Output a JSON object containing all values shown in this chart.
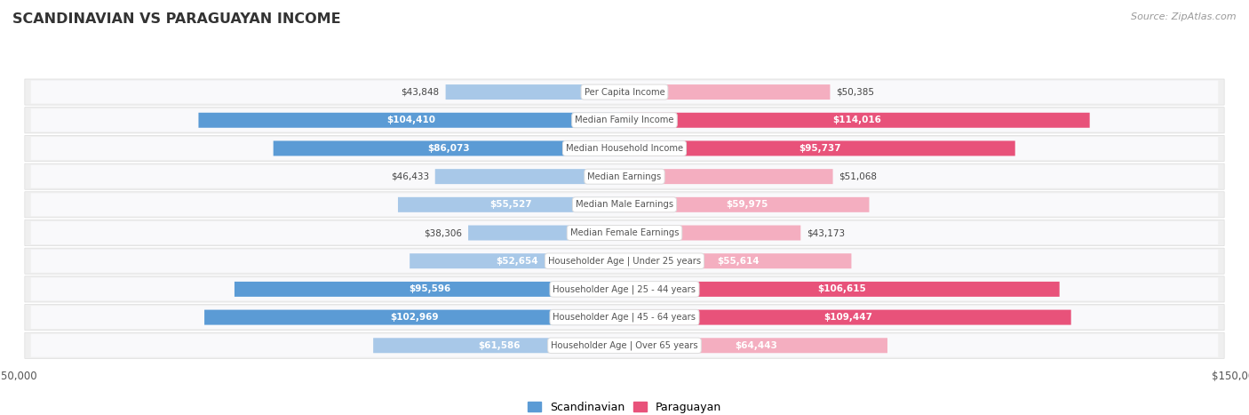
{
  "title": "SCANDINAVIAN VS PARAGUAYAN INCOME",
  "source": "Source: ZipAtlas.com",
  "categories": [
    "Per Capita Income",
    "Median Family Income",
    "Median Household Income",
    "Median Earnings",
    "Median Male Earnings",
    "Median Female Earnings",
    "Householder Age | Under 25 years",
    "Householder Age | 25 - 44 years",
    "Householder Age | 45 - 64 years",
    "Householder Age | Over 65 years"
  ],
  "scandinavian": [
    43848,
    104410,
    86073,
    46433,
    55527,
    38306,
    52654,
    95596,
    102969,
    61586
  ],
  "paraguayan": [
    50385,
    114016,
    95737,
    51068,
    59975,
    43173,
    55614,
    106615,
    109447,
    64443
  ],
  "scandinavian_labels": [
    "$43,848",
    "$104,410",
    "$86,073",
    "$46,433",
    "$55,527",
    "$38,306",
    "$52,654",
    "$95,596",
    "$102,969",
    "$61,586"
  ],
  "paraguayan_labels": [
    "$50,385",
    "$114,016",
    "$95,737",
    "$51,068",
    "$59,975",
    "$43,173",
    "$55,614",
    "$106,615",
    "$109,447",
    "$64,443"
  ],
  "max_val": 150000,
  "scand_light": "#a8c8e8",
  "scand_dark": "#5b9bd5",
  "para_light": "#f4aec0",
  "para_dark": "#e8527a",
  "row_bg": "#efefef",
  "row_inner_bg": "#f9f9fb",
  "title_color": "#333333",
  "source_color": "#999999",
  "outside_label_color": "#444444",
  "inside_label_color": "#ffffff",
  "center_label_bg": "#ffffff",
  "center_label_color": "#555555",
  "center_label_edge": "#dddddd",
  "legend_scand": "#5b9bd5",
  "legend_para": "#e8527a",
  "large_threshold": 0.55,
  "inside_threshold": 0.35
}
